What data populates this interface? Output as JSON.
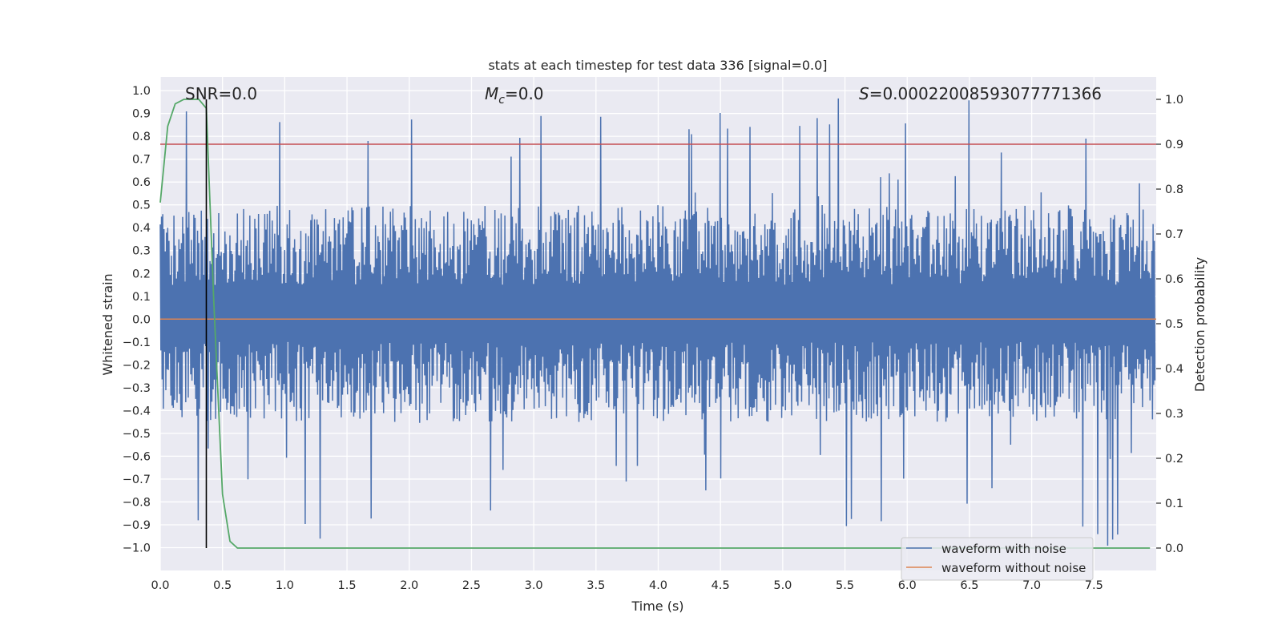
{
  "chart_data": {
    "type": "line",
    "title": "stats at each timestep for test data 336 [signal=0.0]",
    "xlabel": "Time (s)",
    "ylabel": "Whitened strain",
    "y2label": "Detection probability",
    "xlim": [
      0.0,
      8.0
    ],
    "ylim": [
      -1.1,
      1.06
    ],
    "y2lim": [
      -0.05,
      1.05
    ],
    "x_ticks": [
      0.0,
      0.5,
      1.0,
      1.5,
      2.0,
      2.5,
      3.0,
      3.5,
      4.0,
      4.5,
      5.0,
      5.5,
      6.0,
      6.5,
      7.0,
      7.5
    ],
    "x_tick_labels": [
      "0.0",
      "0.5",
      "1.0",
      "1.5",
      "2.0",
      "2.5",
      "3.0",
      "3.5",
      "4.0",
      "4.5",
      "5.0",
      "5.5",
      "6.0",
      "6.5",
      "7.0",
      "7.5"
    ],
    "y_ticks": [
      1.0,
      0.9,
      0.8,
      0.7,
      0.6,
      0.5,
      0.4,
      0.3,
      0.2,
      0.1,
      0.0,
      -0.1,
      -0.2,
      -0.3,
      -0.4,
      -0.5,
      -0.6,
      -0.7,
      -0.8,
      -0.9,
      -1.0
    ],
    "y_tick_labels": [
      "1.0",
      "0.9",
      "0.8",
      "0.7",
      "0.6",
      "0.5",
      "0.4",
      "0.3",
      "0.2",
      "0.1",
      "0.0",
      "−0.1",
      "−0.2",
      "−0.3",
      "−0.4",
      "−0.5",
      "−0.6",
      "−0.7",
      "−0.8",
      "−0.9",
      "−1.0"
    ],
    "y2_ticks": [
      1.0,
      0.9,
      0.8,
      0.7,
      0.6,
      0.5,
      0.4,
      0.3,
      0.2,
      0.1,
      0.0
    ],
    "y2_tick_labels": [
      "1.0",
      "0.9",
      "0.8",
      "0.7",
      "0.6",
      "0.5",
      "0.4",
      "0.3",
      "0.2",
      "0.1",
      "0.0"
    ],
    "annotations": {
      "snr": "SNR=0.0",
      "mc_symbol": "M",
      "mc_sub": "c",
      "mc_value": "=0.0",
      "s_symbol": "S",
      "s_value": "=0.00022008593077771366"
    },
    "threshold_y2": 0.9,
    "marker_time": 0.37,
    "noise_envelope": {
      "seed": 336,
      "samples": 1600,
      "typical_max": 0.5,
      "typical_min": -0.45,
      "peak_max": 0.97,
      "peak_min": -1.0
    },
    "series": [
      {
        "name": "waveform with noise",
        "color": "#4c72b0"
      },
      {
        "name": "waveform without noise",
        "color": "#dd8452",
        "x": [
          0.0,
          8.0
        ],
        "y": [
          0.0,
          0.0
        ]
      },
      {
        "name": "detection probability",
        "color": "#55a868",
        "axis": "y2",
        "x": [
          0.0,
          0.06,
          0.12,
          0.19,
          0.25,
          0.31,
          0.37,
          0.43,
          0.5,
          0.56,
          0.62,
          0.68,
          1.0,
          2.0,
          3.0,
          4.0,
          5.0,
          6.0,
          7.0,
          7.95
        ],
        "y": [
          0.77,
          0.94,
          0.99,
          1.0,
          1.0,
          1.0,
          0.98,
          0.55,
          0.12,
          0.015,
          0.0,
          0.0,
          0.0,
          0.0,
          0.0,
          0.0,
          0.0,
          0.0,
          0.0,
          0.0
        ]
      }
    ],
    "legend": [
      "waveform with noise",
      "waveform without noise"
    ],
    "legend_loc": "lower-right",
    "grid": true
  }
}
